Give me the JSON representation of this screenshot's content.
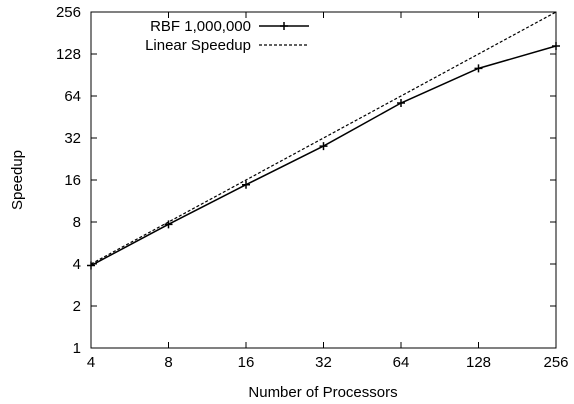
{
  "chart_data": {
    "type": "line",
    "title": "",
    "xlabel": "Number of Processors",
    "ylabel": "Speedup",
    "x_scale": "log2",
    "y_scale": "log2",
    "xlim": [
      4,
      256
    ],
    "ylim": [
      1,
      256
    ],
    "x_ticks": [
      "4",
      "8",
      "16",
      "32",
      "64",
      "128",
      "256"
    ],
    "y_ticks": [
      "1",
      "2",
      "4",
      "8",
      "16",
      "32",
      "64",
      "128",
      "256"
    ],
    "grid": false,
    "legend_position": "top-left",
    "series": [
      {
        "name": "RBF 1,000,000",
        "style": "solid",
        "marker": "plus",
        "color": "#000000",
        "x": [
          4,
          8,
          16,
          32,
          64,
          128,
          256
        ],
        "y": [
          3.9,
          7.7,
          14.8,
          28,
          57,
          101,
          146
        ]
      },
      {
        "name": "Linear Speedup",
        "style": "dashed",
        "marker": "none",
        "color": "#000000",
        "x": [
          4,
          256
        ],
        "y": [
          4,
          256
        ]
      }
    ]
  }
}
